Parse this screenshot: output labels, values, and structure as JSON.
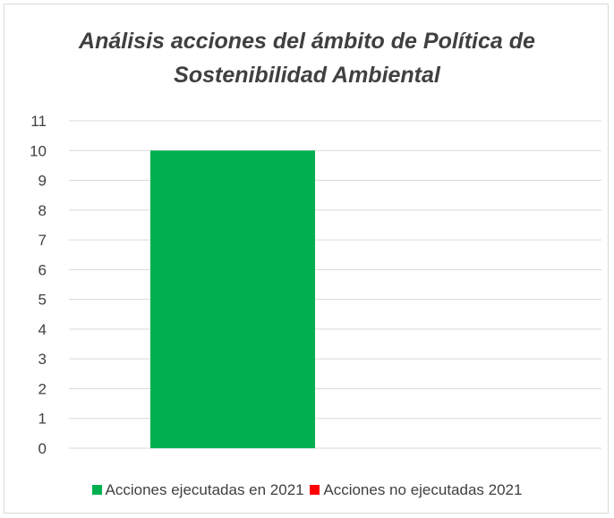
{
  "chart_data": {
    "type": "bar",
    "title": "Análisis acciones del ámbito de Política de Sostenibilidad Ambiental",
    "title_lines": [
      "Análisis acciones del ámbito de Política de",
      "Sostenibilidad Ambiental"
    ],
    "xlabel": "",
    "ylabel": "",
    "ylim": [
      0,
      11
    ],
    "yticks": [
      "0",
      "1",
      "2",
      "3",
      "4",
      "5",
      "6",
      "7",
      "8",
      "9",
      "10",
      "11"
    ],
    "grid": true,
    "legend_position": "bottom",
    "series": [
      {
        "name": "Acciones ejecutadas en 2021",
        "color": "#00b050",
        "values": [
          10
        ]
      },
      {
        "name": "Acciones no ejecutadas 2021",
        "color": "#ff0000",
        "values": [
          0
        ]
      }
    ]
  }
}
